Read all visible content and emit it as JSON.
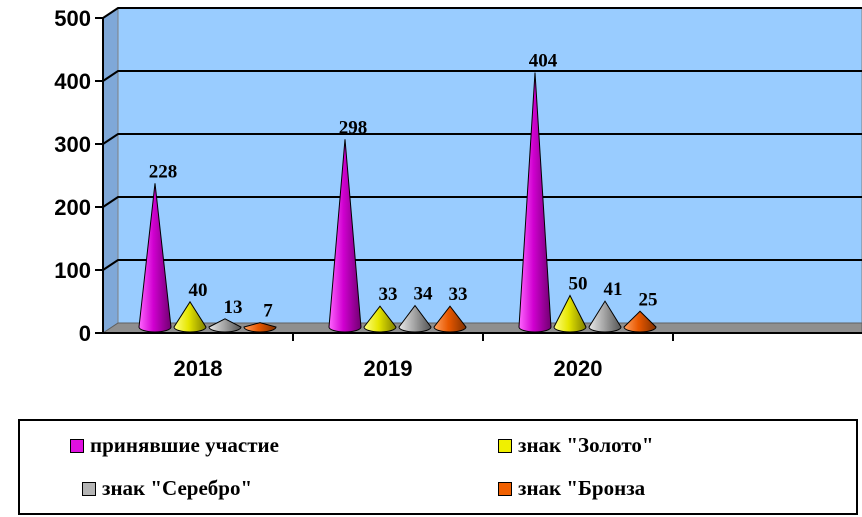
{
  "chart_data": {
    "type": "bar",
    "style": "3d-cone",
    "categories": [
      "2018",
      "2019",
      "2020"
    ],
    "series": [
      {
        "name": "принявшие участие",
        "values": [
          228,
          298,
          404
        ],
        "color": "#e010e0"
      },
      {
        "name": "знак \"Золото\"",
        "values": [
          40,
          33,
          50
        ],
        "color": "#f0f000"
      },
      {
        "name": "знак \"Серебро\"",
        "values": [
          13,
          34,
          41
        ],
        "color": "#b4b4b4"
      },
      {
        "name": "знак \"Бронза",
        "values": [
          7,
          33,
          25
        ],
        "color": "#f06000"
      }
    ],
    "ylim": [
      0,
      500
    ],
    "yticks": [
      "0",
      "100",
      "200",
      "300",
      "400",
      "500"
    ],
    "grid": true,
    "plot_background": "#99ccff",
    "legend_position": "bottom"
  }
}
